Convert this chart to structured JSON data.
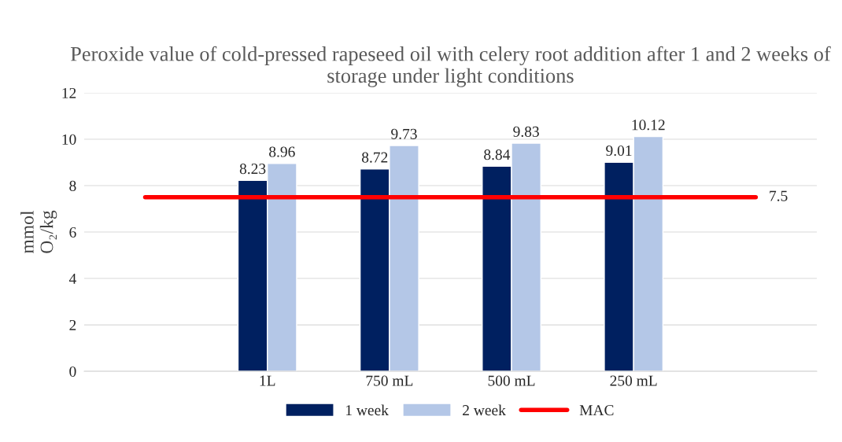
{
  "chart_data": {
    "type": "bar",
    "title": "Peroxide value of cold-pressed rapeseed oil with celery root addition after 1 and 2 weeks of storage under light conditions",
    "ylabel": "mmol\nO₂/kg",
    "categories": [
      null,
      "1L",
      "750 mL",
      "500 mL",
      "250 mL",
      null
    ],
    "series": [
      {
        "name": "1 week",
        "color": "#002060",
        "values": [
          null,
          8.23,
          8.72,
          8.84,
          9.01,
          null
        ],
        "value_labels": [
          null,
          "8.23",
          "8.72",
          "8.84",
          "9.01",
          null
        ]
      },
      {
        "name": "2 week",
        "color": "#b4c7e7",
        "values": [
          null,
          8.96,
          9.73,
          9.83,
          10.12,
          null
        ],
        "value_labels": [
          null,
          "8.96",
          "9.73",
          "9.83",
          "10.12",
          null
        ]
      },
      {
        "name": "MAC",
        "type": "line",
        "color": "#ff0000",
        "values": [
          7.5,
          7.5,
          7.5,
          7.5,
          7.5,
          7.5
        ],
        "value_labels": [
          null,
          null,
          null,
          null,
          null,
          "7.5"
        ]
      }
    ],
    "ylim": [
      0,
      12
    ],
    "yticks": [
      0,
      2,
      4,
      6,
      8,
      10,
      12
    ],
    "grid": "y",
    "legend": "bottom",
    "marker": "none",
    "line_style": "solid"
  }
}
